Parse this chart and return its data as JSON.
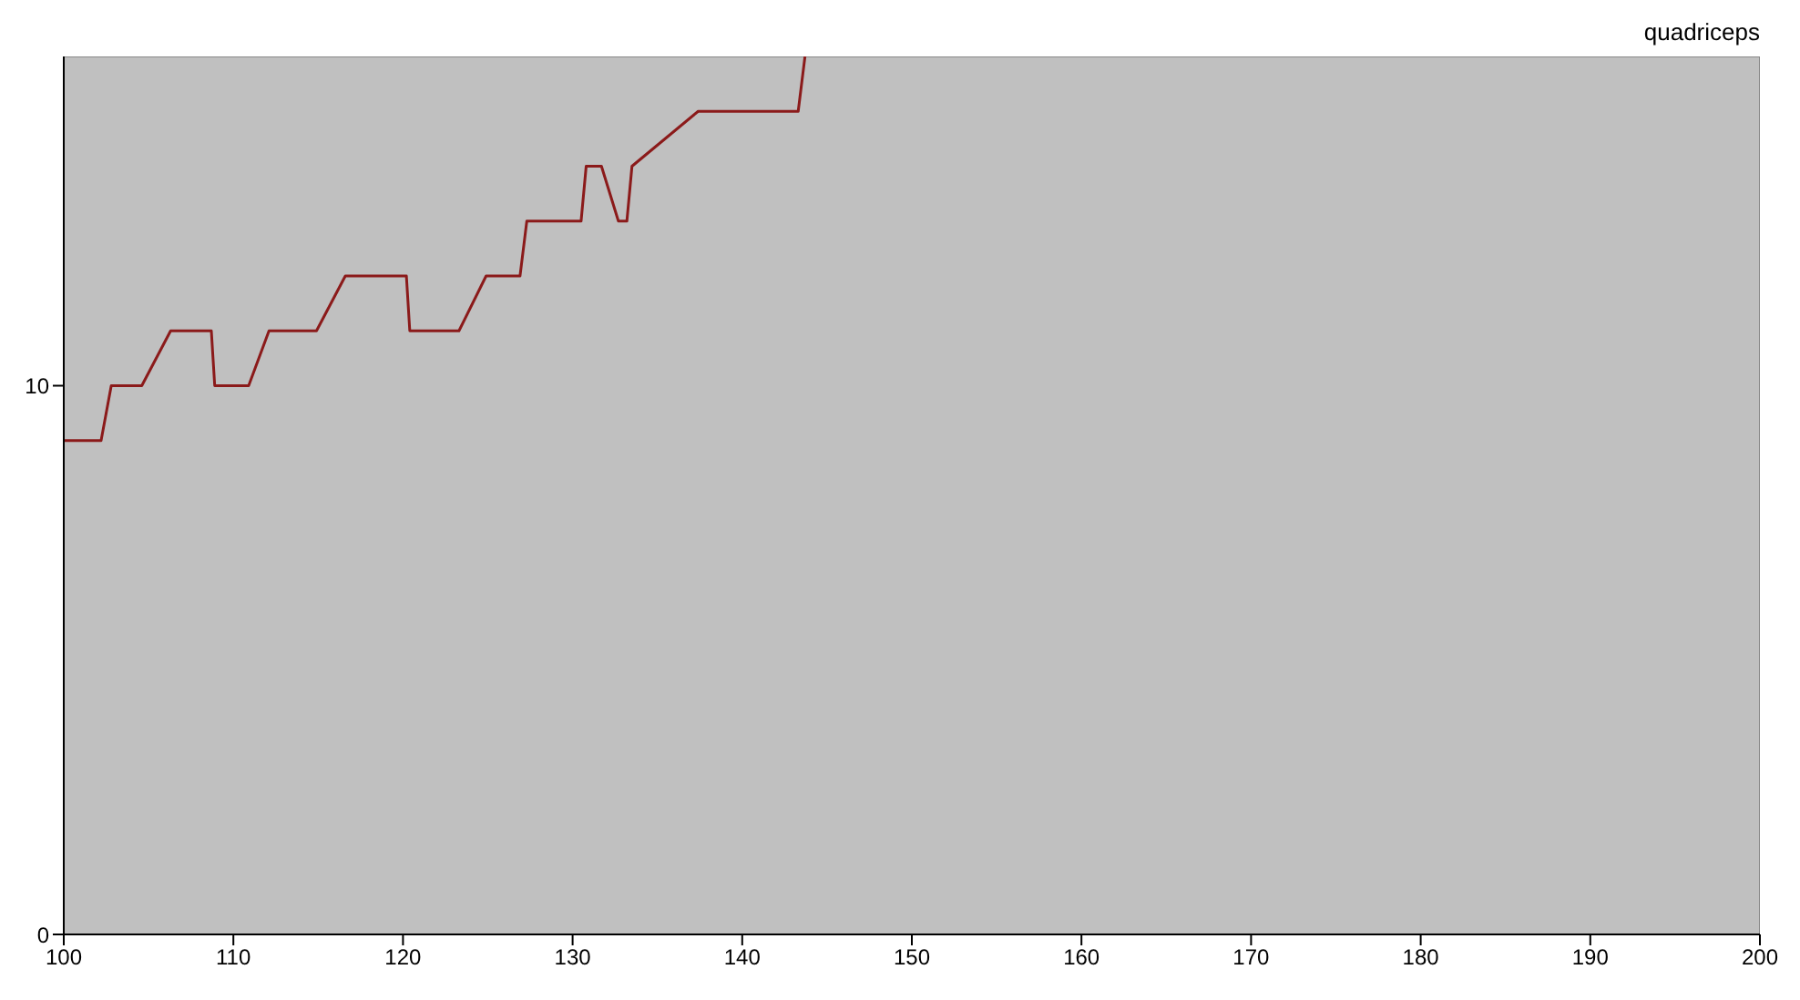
{
  "chart_data": {
    "type": "line",
    "title": "quadriceps",
    "x": [
      100,
      102.2,
      102.8,
      104.6,
      106.3,
      108.7,
      108.9,
      110.9,
      112.1,
      114.9,
      116.6,
      120.2,
      120.4,
      123.3,
      124.9,
      126.9,
      127.3,
      130.5,
      130.8,
      131.7,
      132.7,
      133.2,
      133.5,
      137.4,
      143.3,
      143.7
    ],
    "series": [
      {
        "color": "#8b1a1a",
        "values": [
          9,
          9,
          10,
          10,
          11,
          11,
          10,
          10,
          11,
          11,
          12,
          12,
          11,
          11,
          12,
          12,
          13,
          13,
          14,
          14,
          13,
          13,
          14,
          15,
          15,
          16
        ]
      }
    ],
    "xlim": [
      100,
      200
    ],
    "xticks": [
      100,
      110,
      120,
      130,
      140,
      150,
      160,
      170,
      180,
      190,
      200
    ],
    "ylim": [
      0,
      16
    ],
    "yticks": [
      0,
      10
    ],
    "grid": false,
    "legend": false,
    "marker": "none",
    "line_style": "solid"
  }
}
